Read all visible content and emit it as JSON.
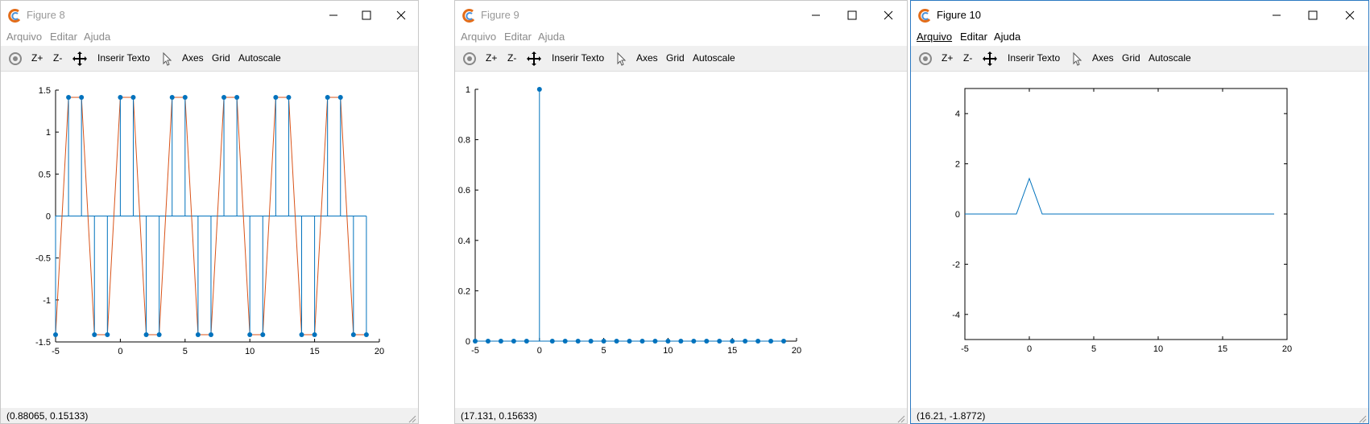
{
  "windows": [
    {
      "title": "Figure 8",
      "menu": [
        "Arquivo",
        "Editar",
        "Ajuda"
      ],
      "toolbar": [
        "Z+",
        "Z-",
        "Inserir Texto",
        "Axes",
        "Grid",
        "Autoscale"
      ],
      "status": "(0.88065, 0.15133)",
      "chart_data": {
        "type": "stem",
        "xlim": [
          -5,
          20
        ],
        "ylim": [
          -1.5,
          1.5
        ],
        "xticks": [
          "-5",
          "0",
          "5",
          "10",
          "15",
          "20"
        ],
        "yticks": [
          "1.5",
          "1",
          "0.5",
          "0",
          "-0.5",
          "-1",
          "-1.5"
        ],
        "series": [
          {
            "x": [
              -5,
              -4,
              -3,
              -2,
              -1,
              0,
              1,
              2,
              3,
              4,
              5,
              6,
              7,
              8,
              9,
              10,
              11,
              12,
              13,
              14,
              15,
              16,
              17,
              18,
              19
            ],
            "values": [
              -1.4142,
              1.4142,
              1.4142,
              -1.4142,
              -1.4142,
              1.4142,
              1.4142,
              -1.4142,
              -1.4142,
              1.4142,
              1.4142,
              -1.4142,
              -1.4142,
              1.4142,
              1.4142,
              -1.4142,
              -1.4142,
              1.4142,
              1.4142,
              -1.4142,
              -1.4142,
              1.4142,
              1.4142,
              -1.4142,
              -1.4142
            ]
          }
        ],
        "overlay_line_color": "#d95319",
        "stem_color": "#0072bd"
      }
    },
    {
      "title": "Figure 9",
      "menu": [
        "Arquivo",
        "Editar",
        "Ajuda"
      ],
      "toolbar": [
        "Z+",
        "Z-",
        "Inserir Texto",
        "Axes",
        "Grid",
        "Autoscale"
      ],
      "status": "(17.131, 0.15633)",
      "chart_data": {
        "type": "stem",
        "xlim": [
          -5,
          20
        ],
        "ylim": [
          0,
          1
        ],
        "xticks": [
          "-5",
          "0",
          "5",
          "10",
          "15",
          "20"
        ],
        "yticks": [
          "1",
          "0.8",
          "0.6",
          "0.4",
          "0.2",
          "0"
        ],
        "series": [
          {
            "x": [
              -5,
              -4,
              -3,
              -2,
              -1,
              0,
              1,
              2,
              3,
              4,
              5,
              6,
              7,
              8,
              9,
              10,
              11,
              12,
              13,
              14,
              15,
              16,
              17,
              18,
              19
            ],
            "values": [
              0,
              0,
              0,
              0,
              0,
              1,
              0,
              0,
              0,
              0,
              0,
              0,
              0,
              0,
              0,
              0,
              0,
              0,
              0,
              0,
              0,
              0,
              0,
              0,
              0
            ]
          }
        ],
        "stem_color": "#0072bd"
      }
    },
    {
      "title": "Figure 10",
      "menu": [
        "Arquivo",
        "Editar",
        "Ajuda"
      ],
      "toolbar": [
        "Z+",
        "Z-",
        "Inserir Texto",
        "Axes",
        "Grid",
        "Autoscale"
      ],
      "status": "(16.21, -1.8772)",
      "chart_data": {
        "type": "line",
        "xlim": [
          -5,
          20
        ],
        "ylim": [
          -5,
          5
        ],
        "xticks": [
          "-5",
          "0",
          "5",
          "10",
          "15",
          "20"
        ],
        "yticks": [
          "4",
          "2",
          "0",
          "-2",
          "-4"
        ],
        "series": [
          {
            "x": [
              -5,
              -4,
              -3,
              -2,
              -1,
              0,
              1,
              2,
              3,
              4,
              5,
              6,
              7,
              8,
              9,
              10,
              11,
              12,
              13,
              14,
              15,
              16,
              17,
              18,
              19
            ],
            "values": [
              0,
              0,
              0,
              0,
              0,
              1.4142,
              0,
              0,
              0,
              0,
              0,
              0,
              0,
              0,
              0,
              0,
              0,
              0,
              0,
              0,
              0,
              0,
              0,
              0,
              0
            ]
          }
        ],
        "line_color": "#0072bd",
        "box": true
      }
    }
  ],
  "colors": {
    "active_border": "#2b79c2",
    "toolbar_bg": "#f0f0f0",
    "stem": "#0072bd",
    "overlay": "#d95319"
  }
}
